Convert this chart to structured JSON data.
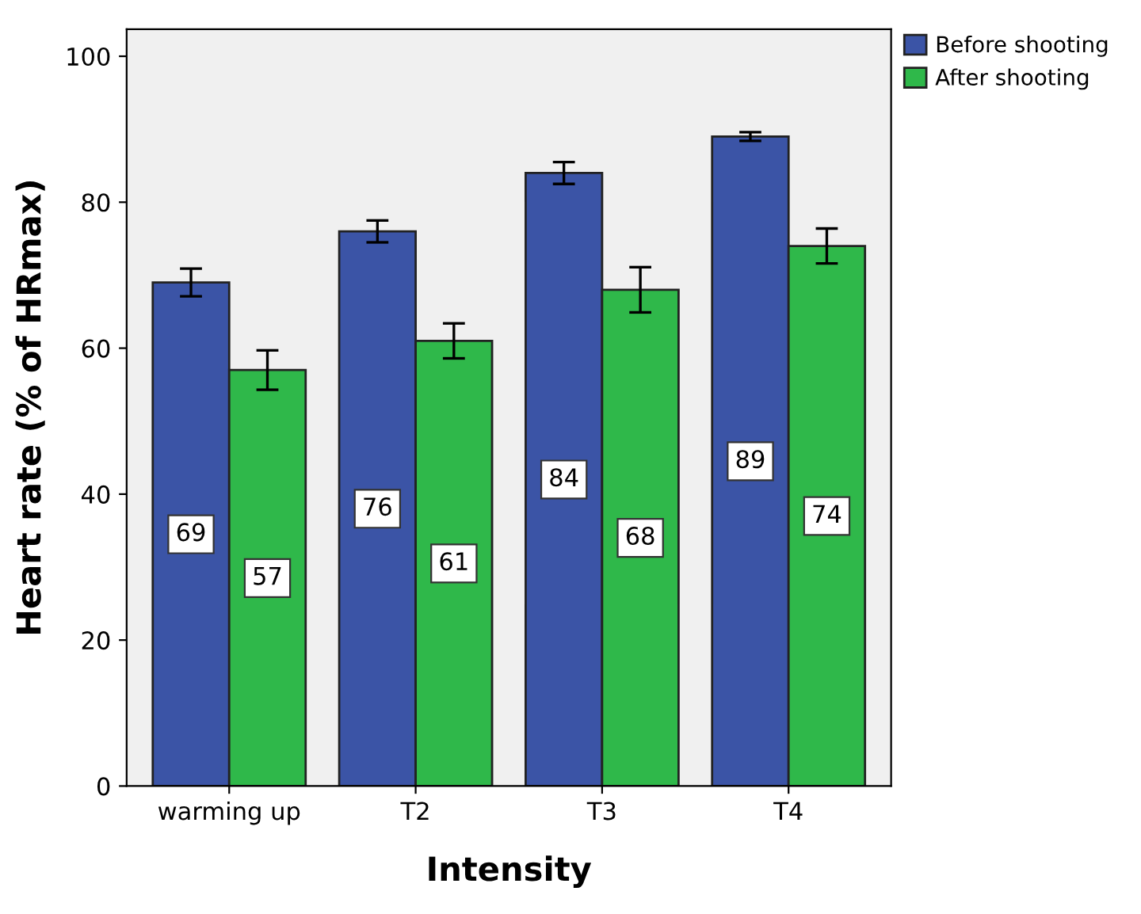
{
  "chart_data": {
    "type": "bar",
    "xlabel": "Intensity",
    "ylabel": "Heart rate (% of HRmax)",
    "categories": [
      "warming up",
      "T2",
      "T3",
      "T4"
    ],
    "series": [
      {
        "name": "Before shooting",
        "color": "#3b54a6",
        "values": [
          69,
          76,
          84,
          89
        ],
        "errors": [
          1.9,
          1.5,
          1.5,
          0.6
        ]
      },
      {
        "name": "After shooting",
        "color": "#2fb84a",
        "values": [
          57,
          61,
          68,
          74
        ],
        "errors": [
          2.7,
          2.4,
          3.1,
          2.4
        ]
      }
    ],
    "ylim": [
      0,
      103.7
    ],
    "yticks": [
      0,
      20,
      40,
      60,
      80,
      100
    ],
    "grid": false,
    "legend": "top right",
    "data_labels": true
  }
}
